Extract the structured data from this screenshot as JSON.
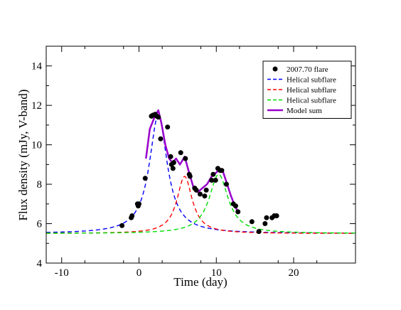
{
  "chart_data": {
    "type": "scatter",
    "xlabel": "Time (day)",
    "ylabel": "Flux density (mJy, V-band)",
    "xlim": [
      -12,
      28
    ],
    "ylim": [
      4,
      15
    ],
    "x_ticks": [
      -10,
      0,
      10,
      20
    ],
    "y_ticks": [
      4,
      6,
      8,
      10,
      12,
      14
    ],
    "x_tick_labels": [
      "-10",
      "0",
      "10",
      "20"
    ],
    "y_tick_labels": [
      "4",
      "6",
      "8",
      "10",
      "12",
      "14"
    ],
    "grid": false,
    "legend_position": "top-right",
    "series": [
      {
        "name": "2007.70 flare",
        "kind": "points",
        "color": "#000000",
        "points": [
          [
            -2.2,
            5.9
          ],
          [
            -1.0,
            6.3
          ],
          [
            -0.9,
            6.4
          ],
          [
            -0.1,
            6.9
          ],
          [
            0.0,
            7.0
          ],
          [
            -0.2,
            7.0
          ],
          [
            0.8,
            8.3
          ],
          [
            1.6,
            11.45
          ],
          [
            1.8,
            11.5
          ],
          [
            2.1,
            11.55
          ],
          [
            2.3,
            11.45
          ],
          [
            2.5,
            11.4
          ],
          [
            2.8,
            10.3
          ],
          [
            3.7,
            10.9
          ],
          [
            4.1,
            9.4
          ],
          [
            4.2,
            9.0
          ],
          [
            4.4,
            8.8
          ],
          [
            4.5,
            9.1
          ],
          [
            5.4,
            9.6
          ],
          [
            6.0,
            9.3
          ],
          [
            6.5,
            8.5
          ],
          [
            6.6,
            8.4
          ],
          [
            7.2,
            7.8
          ],
          [
            7.4,
            7.7
          ],
          [
            7.9,
            7.5
          ],
          [
            8.5,
            7.4
          ],
          [
            8.7,
            7.7
          ],
          [
            9.4,
            8.2
          ],
          [
            9.6,
            8.5
          ],
          [
            9.9,
            8.2
          ],
          [
            10.2,
            8.8
          ],
          [
            10.5,
            8.7
          ],
          [
            10.7,
            8.7
          ],
          [
            11.3,
            8.0
          ],
          [
            12.2,
            7.0
          ],
          [
            12.5,
            6.9
          ],
          [
            12.8,
            6.6
          ],
          [
            14.6,
            6.1
          ],
          [
            15.5,
            5.6
          ],
          [
            16.3,
            6.0
          ],
          [
            16.5,
            6.3
          ],
          [
            17.2,
            6.3
          ],
          [
            17.5,
            6.4
          ],
          [
            17.8,
            6.4
          ]
        ]
      },
      {
        "name": "Helical subflare",
        "kind": "curve",
        "color": "#0000ff",
        "dash": "6,4",
        "baseline": 5.5,
        "peak_time": 2.5,
        "amplitude": 6.0,
        "width": 1.4
      },
      {
        "name": "Helical subflare",
        "kind": "curve",
        "color": "#ff0000",
        "dash": "6,4",
        "baseline": 5.5,
        "peak_time": 5.9,
        "amplitude": 2.9,
        "width": 1.2
      },
      {
        "name": "Helical subflare",
        "kind": "curve",
        "color": "#00dd00",
        "dash": "6,4",
        "baseline": 5.5,
        "peak_time": 10.3,
        "amplitude": 3.0,
        "width": 1.5
      },
      {
        "name": "Model sum",
        "kind": "line",
        "color": "#9900cc",
        "points": [
          [
            0.9,
            9.3
          ],
          [
            1.4,
            10.8
          ],
          [
            2.0,
            11.4
          ],
          [
            2.5,
            11.75
          ],
          [
            2.9,
            11.1
          ],
          [
            3.4,
            10.0
          ],
          [
            3.9,
            9.3
          ],
          [
            4.3,
            9.1
          ],
          [
            4.8,
            9.3
          ],
          [
            5.3,
            9.0
          ],
          [
            5.9,
            9.4
          ],
          [
            6.4,
            8.7
          ],
          [
            7.0,
            7.9
          ],
          [
            7.6,
            7.6
          ],
          [
            8.2,
            7.8
          ],
          [
            8.8,
            8.0
          ],
          [
            9.4,
            8.4
          ],
          [
            10.0,
            8.6
          ],
          [
            10.4,
            8.75
          ],
          [
            10.9,
            8.6
          ],
          [
            11.4,
            8.0
          ],
          [
            11.9,
            7.4
          ],
          [
            12.4,
            6.9
          ],
          [
            12.8,
            6.6
          ]
        ]
      }
    ]
  }
}
